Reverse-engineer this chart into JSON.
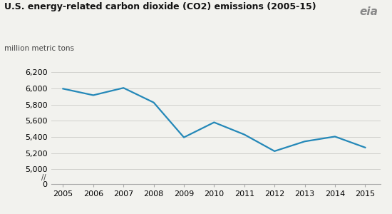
{
  "title": "U.S. energy-related carbon dioxide (CO2) emissions (2005-15)",
  "ylabel": "million metric tons",
  "years": [
    2005,
    2006,
    2007,
    2008,
    2009,
    2010,
    2011,
    2012,
    2013,
    2014,
    2015
  ],
  "values": [
    5995,
    5915,
    6005,
    5825,
    5395,
    5580,
    5430,
    5225,
    5345,
    5405,
    5270
  ],
  "line_color": "#2488b8",
  "line_width": 1.6,
  "bg_color": "#f2f2ee",
  "grid_color": "#d0d0cc",
  "yticks_main": [
    5000,
    5200,
    5400,
    5600,
    5800,
    6000,
    6200
  ],
  "ytick_labels_main": [
    "5,000",
    "5,200",
    "5,400",
    "5,600",
    "5,800",
    "6,000",
    "6,200"
  ],
  "ylim_main_bottom": 4900,
  "ylim_main_top": 6350,
  "xlim_left": 2004.6,
  "xlim_right": 2015.5,
  "title_fontsize": 9,
  "tick_fontsize": 8
}
